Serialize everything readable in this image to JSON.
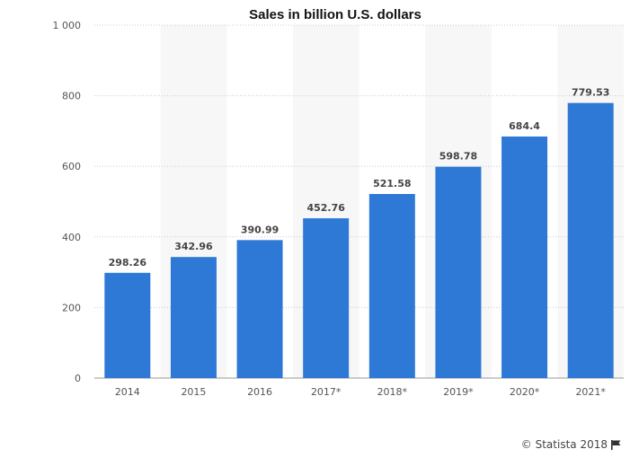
{
  "chart_data": {
    "type": "bar",
    "title": "Sales in billion U.S. dollars",
    "categories": [
      "2014",
      "2015",
      "2016",
      "2017*",
      "2018*",
      "2019*",
      "2020*",
      "2021*"
    ],
    "values": [
      298.26,
      342.96,
      390.99,
      452.76,
      521.58,
      598.78,
      684.4,
      779.53
    ],
    "value_labels": [
      "298.26",
      "342.96",
      "390.99",
      "452.76",
      "521.58",
      "598.78",
      "684.4",
      "779.53"
    ],
    "ylim": [
      0,
      1000
    ],
    "yticks": [
      0,
      200,
      400,
      600,
      800,
      1000
    ],
    "ytick_labels": [
      "0",
      "200",
      "400",
      "600",
      "800",
      "1 000"
    ],
    "grid": true,
    "bar_color": "#2e79d6",
    "alt_band_color": "#f7f7f7",
    "grid_color": "#cccccc"
  },
  "credit": {
    "text": "© Statista 2018",
    "icon": "flag-icon"
  }
}
